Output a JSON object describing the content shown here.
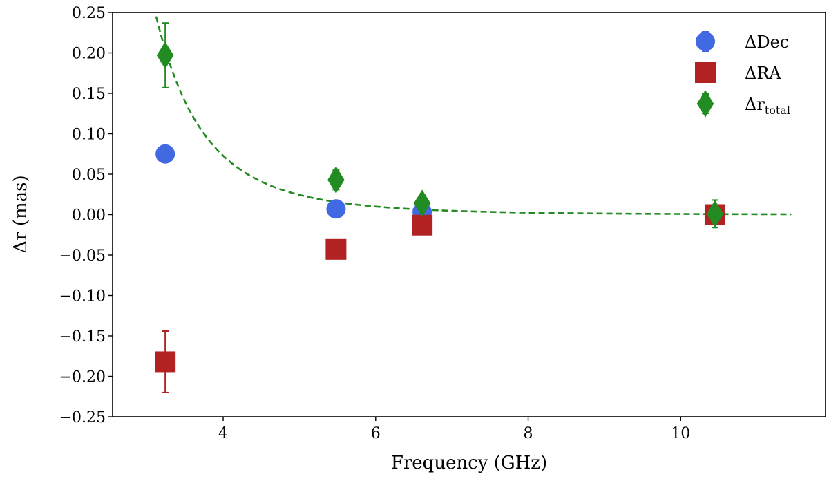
{
  "chart_data": {
    "type": "scatter",
    "title": "",
    "xlabel": "Frequency (GHz)",
    "ylabel": "Δr (mas)",
    "xlim": [
      2.55,
      11.9
    ],
    "ylim": [
      -0.25,
      0.25
    ],
    "xticks": [
      4,
      6,
      8,
      10
    ],
    "xtick_labels": [
      "4",
      "6",
      "8",
      "10"
    ],
    "yticks": [
      0.25,
      0.2,
      0.15,
      0.1,
      0.05,
      0.0,
      -0.05,
      -0.1,
      -0.15,
      -0.2,
      -0.25
    ],
    "ytick_labels": [
      "0.25",
      "0.20",
      "0.15",
      "0.10",
      "0.05",
      "0.00",
      "−0.05",
      "−0.10",
      "−0.15",
      "−0.20",
      "−0.25"
    ],
    "grid": false,
    "legend_position": "top-right",
    "series": [
      {
        "name": "ΔDec",
        "label_main": "ΔDec",
        "label_sub": "",
        "marker": "circle",
        "color": "#4169E1",
        "x": [
          3.24,
          5.48,
          6.61,
          10.45
        ],
        "y": [
          0.075,
          0.007,
          0.003,
          0.0
        ],
        "yerr": [
          0.005,
          0.004,
          0.004,
          0.003
        ]
      },
      {
        "name": "ΔRA",
        "label_main": "ΔRA",
        "label_sub": "",
        "marker": "square",
        "color": "#B22222",
        "x": [
          3.24,
          5.48,
          6.61,
          10.45
        ],
        "y": [
          -0.182,
          -0.043,
          -0.013,
          0.0
        ],
        "yerr": [
          0.038,
          0.004,
          0.004,
          0.01
        ]
      },
      {
        "name": "Δr_total",
        "label_main": "Δr",
        "label_sub": "total",
        "marker": "diamond",
        "color": "#228B22",
        "x": [
          3.24,
          5.48,
          6.61,
          10.45
        ],
        "y": [
          0.197,
          0.043,
          0.014,
          0.001
        ],
        "yerr": [
          0.04,
          0.012,
          0.01,
          0.017
        ]
      }
    ],
    "fit_curve": {
      "style": "dashed",
      "color": "#228B22",
      "x_start": 2.9,
      "x_end": 11.45,
      "model": "a * x^-b",
      "a": 64.0,
      "b": 4.89
    }
  }
}
